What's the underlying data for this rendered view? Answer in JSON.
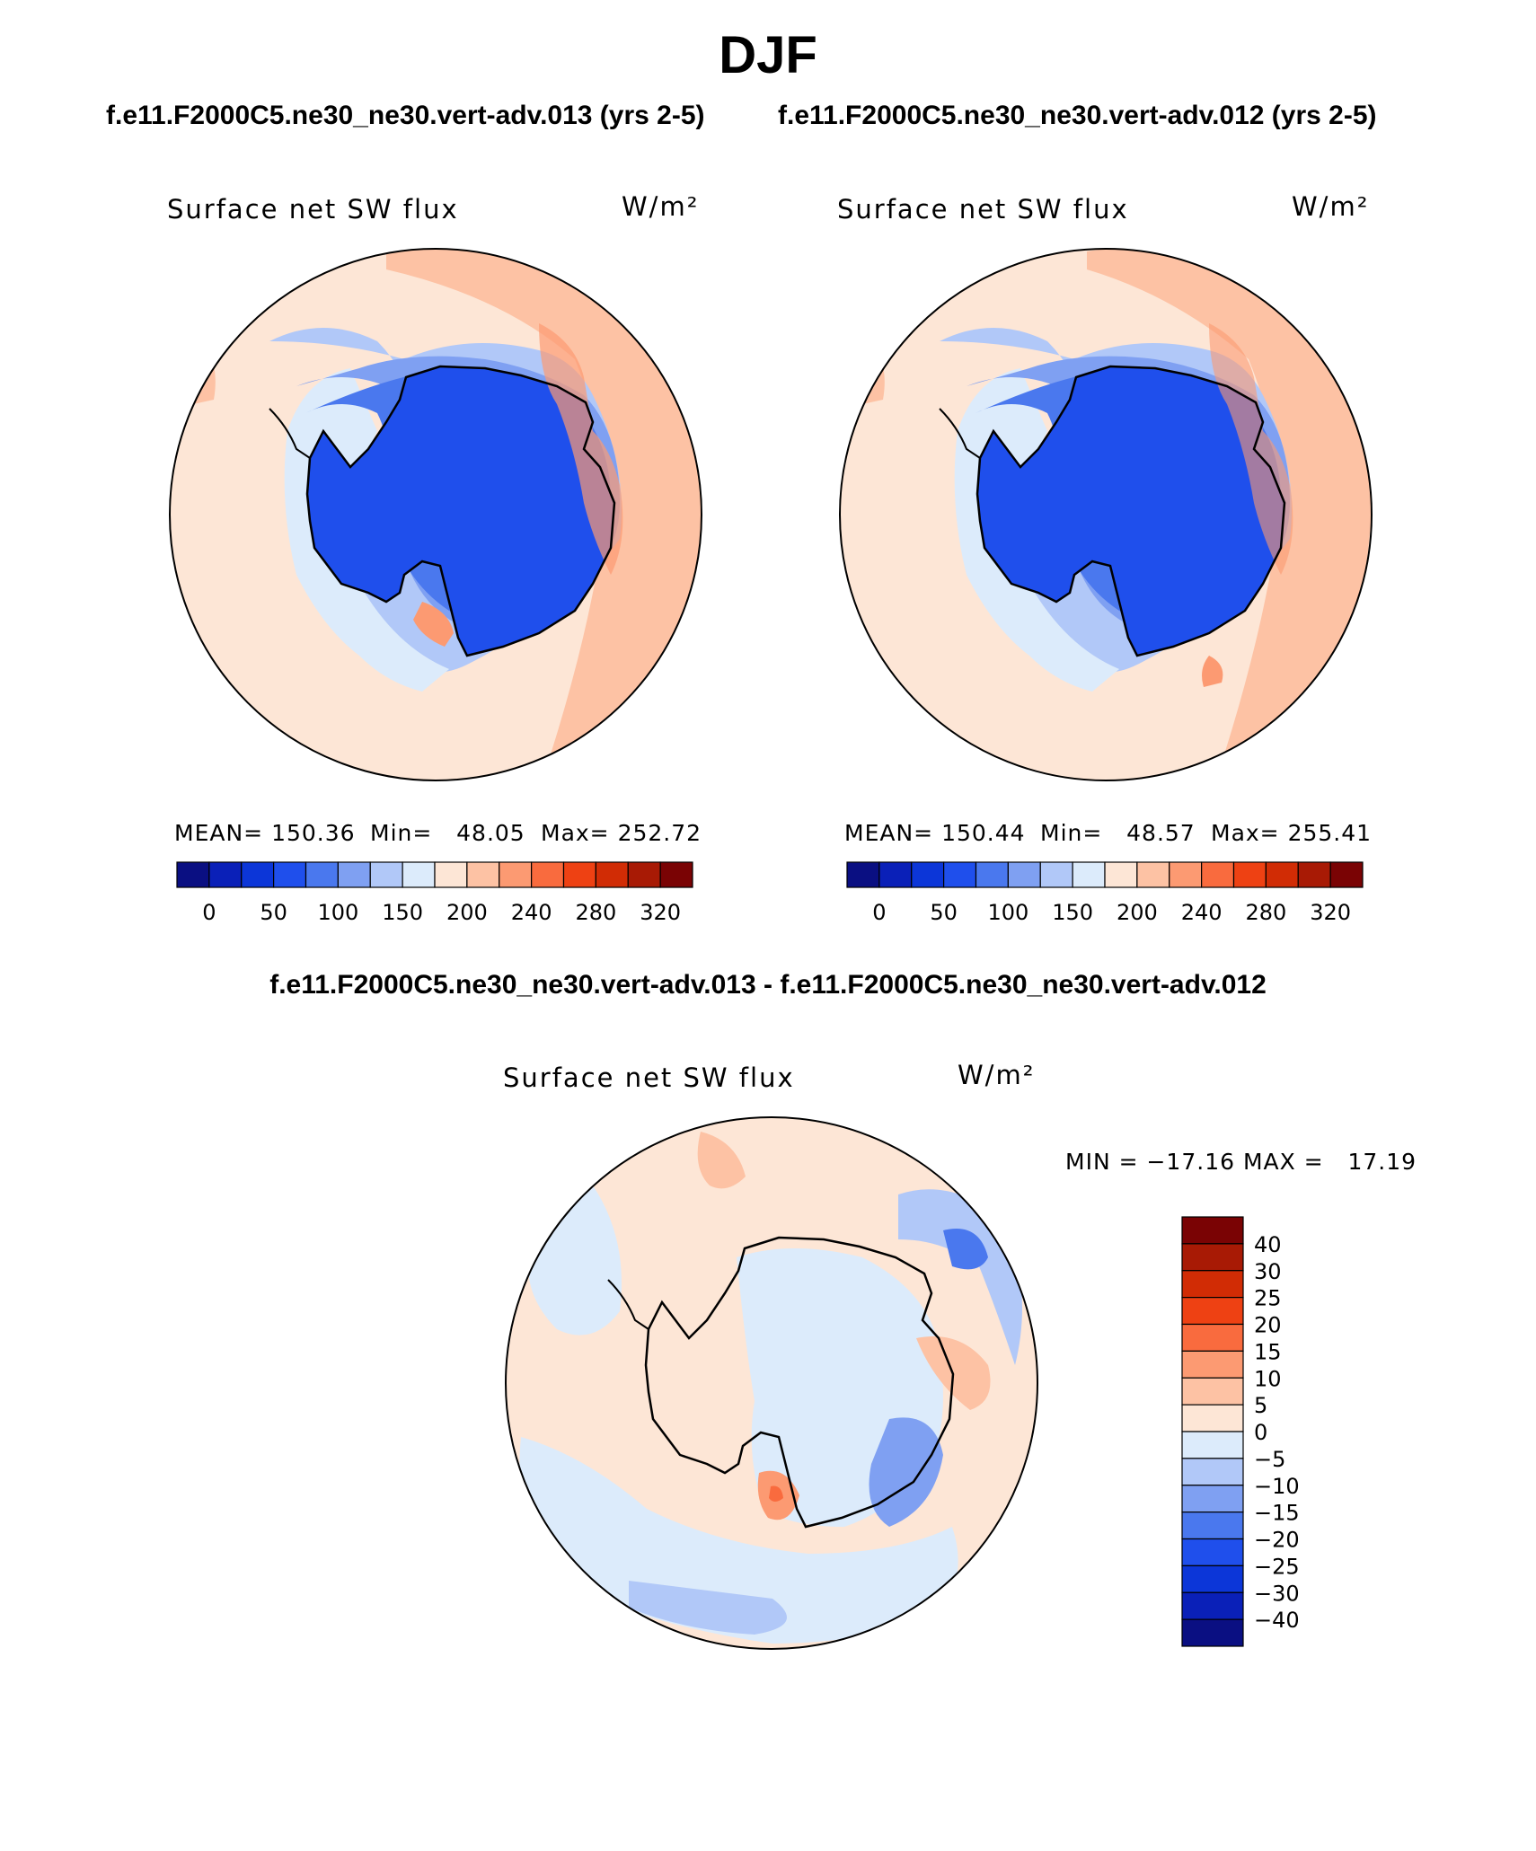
{
  "page": {
    "title": "DJF",
    "case_left": "f.e11.F2000C5.ne30_ne30.vert-adv.013 (yrs 2-5)",
    "case_right": "f.e11.F2000C5.ne30_ne30.vert-adv.012 (yrs 2-5)",
    "diff_title": "f.e11.F2000C5.ne30_ne30.vert-adv.013 - f.e11.F2000C5.ne30_ne30.vert-adv.012"
  },
  "chart_data": [
    {
      "type": "heatmap",
      "projection": "south-polar stereographic",
      "variable": "Surface net SW flux",
      "units": "W/m²",
      "stats": {
        "mean": "MEAN= 150.36",
        "min": "Min=   48.05",
        "max": "Max= 252.72"
      },
      "colorbar": {
        "levels": [
          "0",
          "50",
          "100",
          "150",
          "200",
          "240",
          "280",
          "320"
        ],
        "colors": [
          "#0a0f82",
          "#0a20b8",
          "#0c36d8",
          "#1f4fec",
          "#4a78ee",
          "#7fa0f2",
          "#b1c8f8",
          "#dcebfb",
          "#fde6d6",
          "#fdc2a4",
          "#fc9a72",
          "#f96b3e",
          "#ee4113",
          "#d12c05",
          "#a81a05",
          "#7a0304"
        ]
      }
    },
    {
      "type": "heatmap",
      "projection": "south-polar stereographic",
      "variable": "Surface net SW flux",
      "units": "W/m²",
      "stats": {
        "mean": "MEAN= 150.44",
        "min": "Min=   48.57",
        "max": "Max= 255.41"
      },
      "colorbar": {
        "levels": [
          "0",
          "50",
          "100",
          "150",
          "200",
          "240",
          "280",
          "320"
        ],
        "colors": [
          "#0a0f82",
          "#0a20b8",
          "#0c36d8",
          "#1f4fec",
          "#4a78ee",
          "#7fa0f2",
          "#b1c8f8",
          "#dcebfb",
          "#fde6d6",
          "#fdc2a4",
          "#fc9a72",
          "#f96b3e",
          "#ee4113",
          "#d12c05",
          "#a81a05",
          "#7a0304"
        ]
      }
    },
    {
      "type": "heatmap",
      "projection": "south-polar stereographic",
      "variable": "Surface net SW flux",
      "units": "W/m²",
      "stats": {
        "minmax": "MIN = −17.16 MAX =   17.19"
      },
      "colorbar": {
        "levels": [
          "40",
          "30",
          "25",
          "20",
          "15",
          "10",
          "5",
          "0",
          "−5",
          "−10",
          "−15",
          "−20",
          "−25",
          "−30",
          "−40"
        ],
        "colors": [
          "#7a0304",
          "#a81a05",
          "#d12c05",
          "#ee4113",
          "#f96b3e",
          "#fc9a72",
          "#fdc2a4",
          "#fde6d6",
          "#dcebfb",
          "#b1c8f8",
          "#7fa0f2",
          "#4a78ee",
          "#1f4fec",
          "#0c36d8",
          "#0a20b8",
          "#0a0f82"
        ]
      }
    }
  ]
}
